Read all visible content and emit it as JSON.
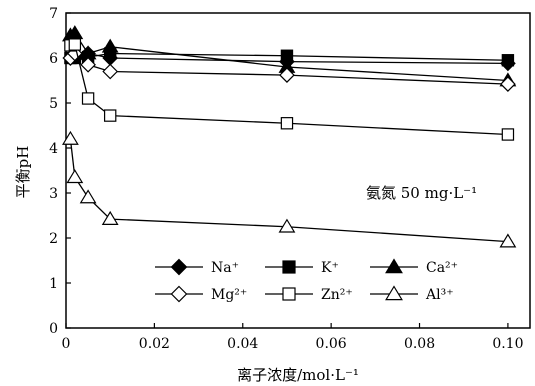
{
  "chart_data": {
    "type": "line",
    "title": "",
    "xlabel": "离子浓度/mol·L⁻¹",
    "ylabel": "平衡pH",
    "xlim": [
      0,
      0.105
    ],
    "ylim": [
      0,
      7
    ],
    "xticks": [
      "0",
      "0.02",
      "0.04",
      "0.06",
      "0.08",
      "0.10"
    ],
    "xtick_values": [
      0,
      0.02,
      0.04,
      0.06,
      0.08,
      0.1
    ],
    "yticks": [
      "0",
      "1",
      "2",
      "3",
      "4",
      "5",
      "6",
      "7"
    ],
    "ytick_values": [
      0,
      1,
      2,
      3,
      4,
      5,
      6,
      7
    ],
    "grid": false,
    "legend_position": "lower-right",
    "annotation": "氨氮 50 mg·L⁻¹",
    "series": [
      {
        "name": "Na⁺",
        "marker": "diamond",
        "fill": "filled",
        "x": [
          0.001,
          0.002,
          0.005,
          0.01,
          0.05,
          0.1
        ],
        "y": [
          6.0,
          6.05,
          6.1,
          6.0,
          5.92,
          5.88
        ]
      },
      {
        "name": "K⁺",
        "marker": "square",
        "fill": "filled",
        "x": [
          0.001,
          0.002,
          0.005,
          0.01,
          0.05,
          0.1
        ],
        "y": [
          6.0,
          6.0,
          6.02,
          6.1,
          6.05,
          5.95
        ]
      },
      {
        "name": "Ca²⁺",
        "marker": "triangle",
        "fill": "filled",
        "x": [
          0.001,
          0.002,
          0.005,
          0.01,
          0.05,
          0.1
        ],
        "y": [
          6.5,
          6.55,
          6.1,
          6.25,
          5.8,
          5.5
        ]
      },
      {
        "name": "Mg²⁺",
        "marker": "diamond",
        "fill": "open",
        "x": [
          0.001,
          0.002,
          0.005,
          0.01,
          0.05,
          0.1
        ],
        "y": [
          6.0,
          6.1,
          5.85,
          5.7,
          5.62,
          5.42
        ]
      },
      {
        "name": "Zn²⁺",
        "marker": "square",
        "fill": "open",
        "x": [
          0.001,
          0.002,
          0.005,
          0.01,
          0.05,
          0.1
        ],
        "y": [
          6.28,
          6.3,
          5.1,
          4.72,
          4.55,
          4.3
        ]
      },
      {
        "name": "Al³⁺",
        "marker": "triangle",
        "fill": "open",
        "x": [
          0.001,
          0.002,
          0.005,
          0.01,
          0.05,
          0.1
        ],
        "y": [
          4.2,
          3.35,
          2.9,
          2.42,
          2.25,
          1.92
        ]
      }
    ]
  }
}
